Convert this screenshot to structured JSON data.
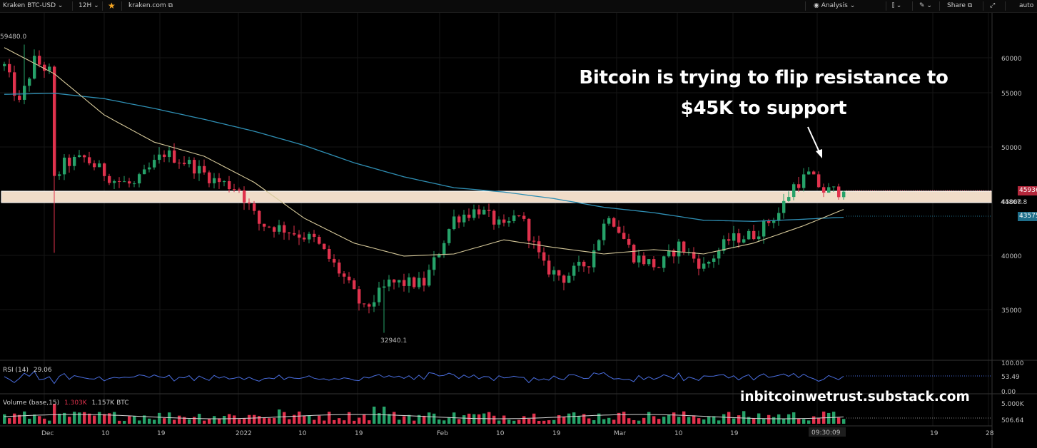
{
  "toolbar": {
    "symbol": "Kraken BTC-USD",
    "interval": "12H",
    "source": "kraken.com",
    "analysis": "Analysis",
    "share": "Share",
    "auto": "auto"
  },
  "annotation": {
    "headline_line1": "Bitcoin is trying to flip resistance to",
    "headline_line2": "$45K to support",
    "watermark": "inbitcoinwetrust.substack.com"
  },
  "price_axis": {
    "ticks": [
      "60000",
      "55000",
      "50000",
      "45000",
      "40000",
      "35000"
    ],
    "last_price": "45936.3",
    "level_1": "44867.8",
    "ma_value": "43575.8",
    "high_label": "59480.0",
    "low_label": "32940.1"
  },
  "time_axis": {
    "ticks": [
      "Dec",
      "10",
      "19",
      "2022",
      "10",
      "19",
      "Feb",
      "10",
      "19",
      "Mar",
      "10",
      "19",
      "19",
      "28"
    ],
    "cursor_time": "09:30:09"
  },
  "rsi": {
    "label": "RSI (14)",
    "value": "29.06",
    "ticks": [
      "100.00",
      "53.49",
      "0.00"
    ]
  },
  "volume": {
    "label": "Volume (base,15)",
    "value_red": "1.303K",
    "value": "1.157K BTC",
    "ticks": [
      "5.000K",
      "506.64"
    ]
  },
  "colors": {
    "up": "#26a269",
    "down": "#e0324d",
    "ma_fast": "#d6c99a",
    "ma_slow": "#2f8fb4",
    "rsi_line": "#4a6ee0",
    "zone": "#f0dcc8",
    "last_price_tag": "#b3283c",
    "ma_tag": "#1f6f8b"
  },
  "chart_data": {
    "type": "candlestick",
    "high": 59480.0,
    "low": 32940.1,
    "last": 45936.3,
    "ylim": [
      32000,
      62000
    ],
    "resistance_zone": [
      44800,
      46000
    ],
    "anchors": [
      {
        "i": 0,
        "v": 57500
      },
      {
        "i": 3,
        "v": 54000
      },
      {
        "i": 6,
        "v": 58000
      },
      {
        "i": 9,
        "v": 57000
      },
      {
        "i": 10,
        "v": 47000
      },
      {
        "i": 12,
        "v": 48500
      },
      {
        "i": 16,
        "v": 49000
      },
      {
        "i": 22,
        "v": 47000
      },
      {
        "i": 26,
        "v": 46500
      },
      {
        "i": 32,
        "v": 49500
      },
      {
        "i": 37,
        "v": 48500
      },
      {
        "i": 42,
        "v": 47000
      },
      {
        "i": 47,
        "v": 46200
      },
      {
        "i": 51,
        "v": 43000
      },
      {
        "i": 56,
        "v": 42500
      },
      {
        "i": 62,
        "v": 41500
      },
      {
        "i": 68,
        "v": 38000
      },
      {
        "i": 72,
        "v": 35000
      },
      {
        "i": 77,
        "v": 37500
      },
      {
        "i": 84,
        "v": 37500
      },
      {
        "i": 90,
        "v": 43500
      },
      {
        "i": 95,
        "v": 44300
      },
      {
        "i": 100,
        "v": 42500
      },
      {
        "i": 103,
        "v": 44000
      },
      {
        "i": 108,
        "v": 39000
      },
      {
        "i": 112,
        "v": 38000
      },
      {
        "i": 117,
        "v": 39500
      },
      {
        "i": 121,
        "v": 44000
      },
      {
        "i": 126,
        "v": 40000
      },
      {
        "i": 131,
        "v": 39000
      },
      {
        "i": 135,
        "v": 41000
      },
      {
        "i": 140,
        "v": 39000
      },
      {
        "i": 145,
        "v": 41500
      },
      {
        "i": 150,
        "v": 42000
      },
      {
        "i": 155,
        "v": 44000
      },
      {
        "i": 158,
        "v": 46500
      },
      {
        "i": 161,
        "v": 47500
      },
      {
        "i": 164,
        "v": 46000
      },
      {
        "i": 168,
        "v": 46000
      }
    ],
    "ma_fast": [
      {
        "i": 0,
        "v": 59200
      },
      {
        "i": 10,
        "v": 56800
      },
      {
        "i": 20,
        "v": 53000
      },
      {
        "i": 30,
        "v": 50500
      },
      {
        "i": 40,
        "v": 49200
      },
      {
        "i": 50,
        "v": 46800
      },
      {
        "i": 60,
        "v": 43500
      },
      {
        "i": 70,
        "v": 41200
      },
      {
        "i": 80,
        "v": 40000
      },
      {
        "i": 90,
        "v": 40200
      },
      {
        "i": 100,
        "v": 41500
      },
      {
        "i": 110,
        "v": 40800
      },
      {
        "i": 120,
        "v": 40200
      },
      {
        "i": 130,
        "v": 40600
      },
      {
        "i": 140,
        "v": 40200
      },
      {
        "i": 150,
        "v": 41200
      },
      {
        "i": 160,
        "v": 42800
      },
      {
        "i": 168,
        "v": 44300
      }
    ],
    "ma_slow": [
      {
        "i": 0,
        "v": 54900
      },
      {
        "i": 10,
        "v": 55000
      },
      {
        "i": 20,
        "v": 54500
      },
      {
        "i": 30,
        "v": 53600
      },
      {
        "i": 40,
        "v": 52600
      },
      {
        "i": 50,
        "v": 51500
      },
      {
        "i": 60,
        "v": 50200
      },
      {
        "i": 70,
        "v": 48600
      },
      {
        "i": 80,
        "v": 47300
      },
      {
        "i": 90,
        "v": 46300
      },
      {
        "i": 100,
        "v": 45900
      },
      {
        "i": 110,
        "v": 45300
      },
      {
        "i": 120,
        "v": 44500
      },
      {
        "i": 130,
        "v": 44000
      },
      {
        "i": 140,
        "v": 43300
      },
      {
        "i": 150,
        "v": 43200
      },
      {
        "i": 160,
        "v": 43400
      },
      {
        "i": 168,
        "v": 43575.8
      }
    ]
  }
}
